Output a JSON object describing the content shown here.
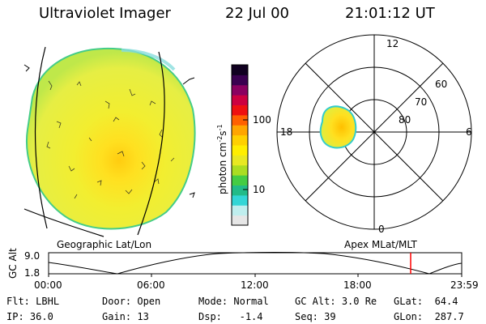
{
  "header": {
    "title": "Ultraviolet Imager",
    "date": "22 Jul 00",
    "time": "21:01:12 UT"
  },
  "colorbar": {
    "label": "photon cm-2s-1",
    "ticks": [
      "100",
      "10"
    ],
    "colors": [
      "#e6e6e6",
      "#bfeeee",
      "#33d6d6",
      "#22bb88",
      "#44cc44",
      "#aadd22",
      "#e8e822",
      "#ffee00",
      "#ffd000",
      "#ffa500",
      "#ff6000",
      "#ee1010",
      "#cc0040",
      "#8a0060",
      "#3a0050",
      "#100020"
    ]
  },
  "left_map": {
    "caption": "Geographic Lat/Lon"
  },
  "right_map": {
    "caption": "Apex MLat/MLT",
    "mlt_labels": {
      "top": "12",
      "right": "6",
      "bottom": "0",
      "left": "18"
    },
    "lat_labels": [
      "60",
      "70",
      "80"
    ]
  },
  "altitude_plot": {
    "ylabel": "GC Alt",
    "ymax": "9.0",
    "ymin": "1.8",
    "xticks": [
      "00:00",
      "06:00",
      "12:00",
      "18:00",
      "23:59"
    ],
    "current_marker_color": "#ff0000"
  },
  "info": {
    "col1": [
      {
        "k": "Flt:",
        "v": "LBHL"
      },
      {
        "k": "IP:",
        "v": "36.0"
      }
    ],
    "col2": [
      {
        "k": "Door:",
        "v": "Open"
      },
      {
        "k": "Gain:",
        "v": "13"
      }
    ],
    "col3": [
      {
        "k": "Mode:",
        "v": "Normal"
      },
      {
        "k": "Dsp:",
        "v": "-1.4"
      }
    ],
    "col4": [
      {
        "k": "GC Alt:",
        "v": "3.0 Re"
      },
      {
        "k": "Seq:",
        "v": "39"
      }
    ],
    "col5": [
      {
        "k": "GLat:",
        "v": "64.4"
      },
      {
        "k": "GLon:",
        "v": "287.7"
      }
    ]
  }
}
